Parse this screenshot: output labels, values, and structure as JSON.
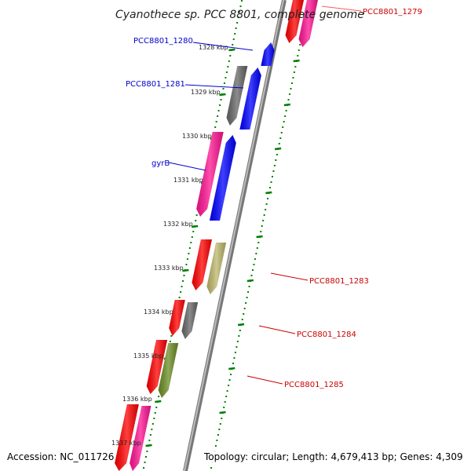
{
  "title": "Cyanothece sp. PCC 8801, complete genome",
  "footer": {
    "accession": "Accession: NC_011726",
    "topology": "Topology: circular; Length: 4,679,413 bp; Genes: 4,309"
  },
  "ticks": [
    "1328 kbp",
    "1329 kbp",
    "1330 kbp",
    "1331 kbp",
    "1332 kbp",
    "1333 kbp",
    "1334 kbp",
    "1335 kbp",
    "1336 kbp",
    "1337 kbp"
  ],
  "labels": {
    "g1279": "PCC8801_1279",
    "g1280": "PCC8801_1280",
    "g1281": "PCC8801_1281",
    "gyrB": "gyrB",
    "g1283": "PCC8801_1283",
    "g1284": "PCC8801_1284",
    "g1285": "PCC8801_1285"
  },
  "colors": {
    "red": "#ff0000",
    "pink": "#ff1493",
    "blue": "#0000ff",
    "gray": "#666666",
    "khaki": "#bdb76b",
    "olive": "#6b8e23",
    "green": "#008000",
    "backbone": "#808080",
    "forward_label": "#0000cc",
    "reverse_label": "#cc0000"
  }
}
